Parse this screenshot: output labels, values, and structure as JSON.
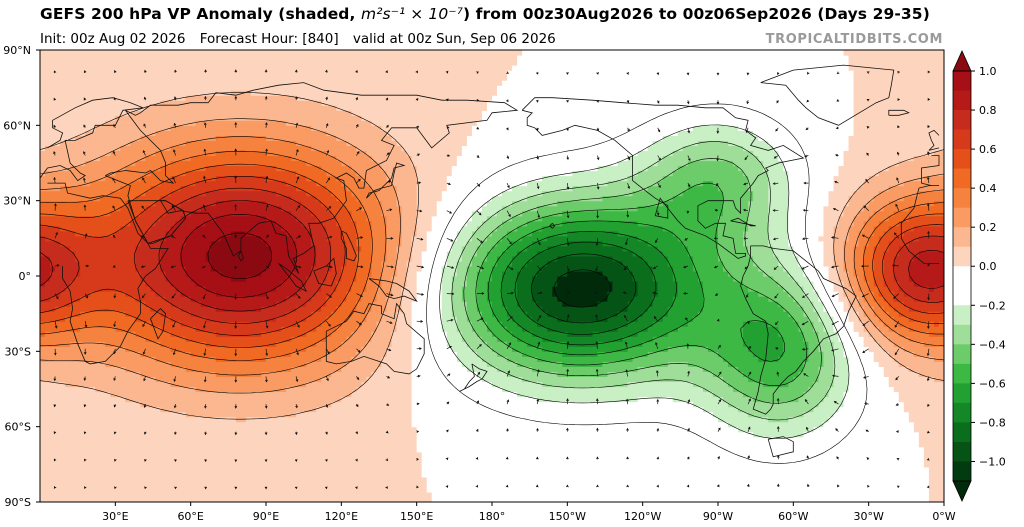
{
  "header": {
    "title_prefix": "GEFS 200 hPa VP Anomaly (shaded,",
    "title_units": "m²s⁻¹ × 10⁻⁷",
    "title_suffix": ") from 00z30Aug2026 to 00z06Sep2026 (Days 29-35)",
    "init": "Init: 00z Aug 02 2026",
    "forecast_hour": "Forecast Hour: [840]",
    "valid": "valid at 00z Sun, Sep 06 2026",
    "brand": "TROPICALTIDBITS.COM"
  },
  "map": {
    "projection": "equirectangular",
    "lon_range": [
      0,
      360
    ],
    "lat_range": [
      -90,
      90
    ],
    "lon_ticks": [
      "30°E",
      "60°E",
      "90°E",
      "120°E",
      "150°E",
      "180°",
      "150°W",
      "120°W",
      "90°W",
      "60°W",
      "30°W",
      "0°W"
    ],
    "lat_ticks": [
      "90°N",
      "60°N",
      "30°N",
      "0°",
      "30°S",
      "60°S",
      "90°S"
    ]
  },
  "colorbar": {
    "tick_labels": [
      "1.0",
      "0.8",
      "0.6",
      "0.4",
      "0.2",
      "0.0",
      "−0.2",
      "−0.4",
      "−0.6",
      "−0.8",
      "−1.0"
    ],
    "levels": [
      1.0,
      0.9,
      0.8,
      0.7,
      0.6,
      0.5,
      0.4,
      0.3,
      0.2,
      0.1,
      0.0,
      -0.1,
      -0.2,
      -0.3,
      -0.4,
      -0.5,
      -0.6,
      -0.7,
      -0.8,
      -0.9,
      -1.0
    ],
    "colors": [
      "#a50f15",
      "#b51a19",
      "#c62c1d",
      "#d63a1b",
      "#e5501a",
      "#f06a24",
      "#f5823f",
      "#f99b63",
      "#fbb790",
      "#fdd4bd",
      "#ffffff",
      "#ffffff",
      "#c9efc5",
      "#9ede98",
      "#6dcc6a",
      "#3eb845",
      "#22a031",
      "#148726",
      "#0b6e1d",
      "#055416",
      "#023b0f"
    ],
    "extend_max_color": "#8b0a12",
    "extend_min_color": "#012a0a"
  },
  "anomalies": [
    {
      "name": "asia-indian-ocean-positive",
      "lon": 80,
      "lat": 8,
      "amplitude": 1.05,
      "sigma_lon": 42,
      "sigma_lat": 30
    },
    {
      "name": "atlantic-africa-positive",
      "lon": 350,
      "lat": 2,
      "amplitude": 0.75,
      "sigma_lon": 22,
      "sigma_lat": 20
    },
    {
      "name": "pacific-negative-core",
      "lon": 215,
      "lat": -5,
      "amplitude": -1.05,
      "sigma_lon": 38,
      "sigma_lat": 25
    },
    {
      "name": "south-america-negative",
      "lon": 295,
      "lat": -30,
      "amplitude": -0.55,
      "sigma_lon": 22,
      "sigma_lat": 24
    },
    {
      "name": "north-america-negative",
      "lon": 270,
      "lat": 38,
      "amplitude": -0.4,
      "sigma_lon": 22,
      "sigma_lat": 18
    }
  ],
  "colors": {
    "coast": "#111111",
    "contour": "#000000",
    "frame": "#000000"
  }
}
